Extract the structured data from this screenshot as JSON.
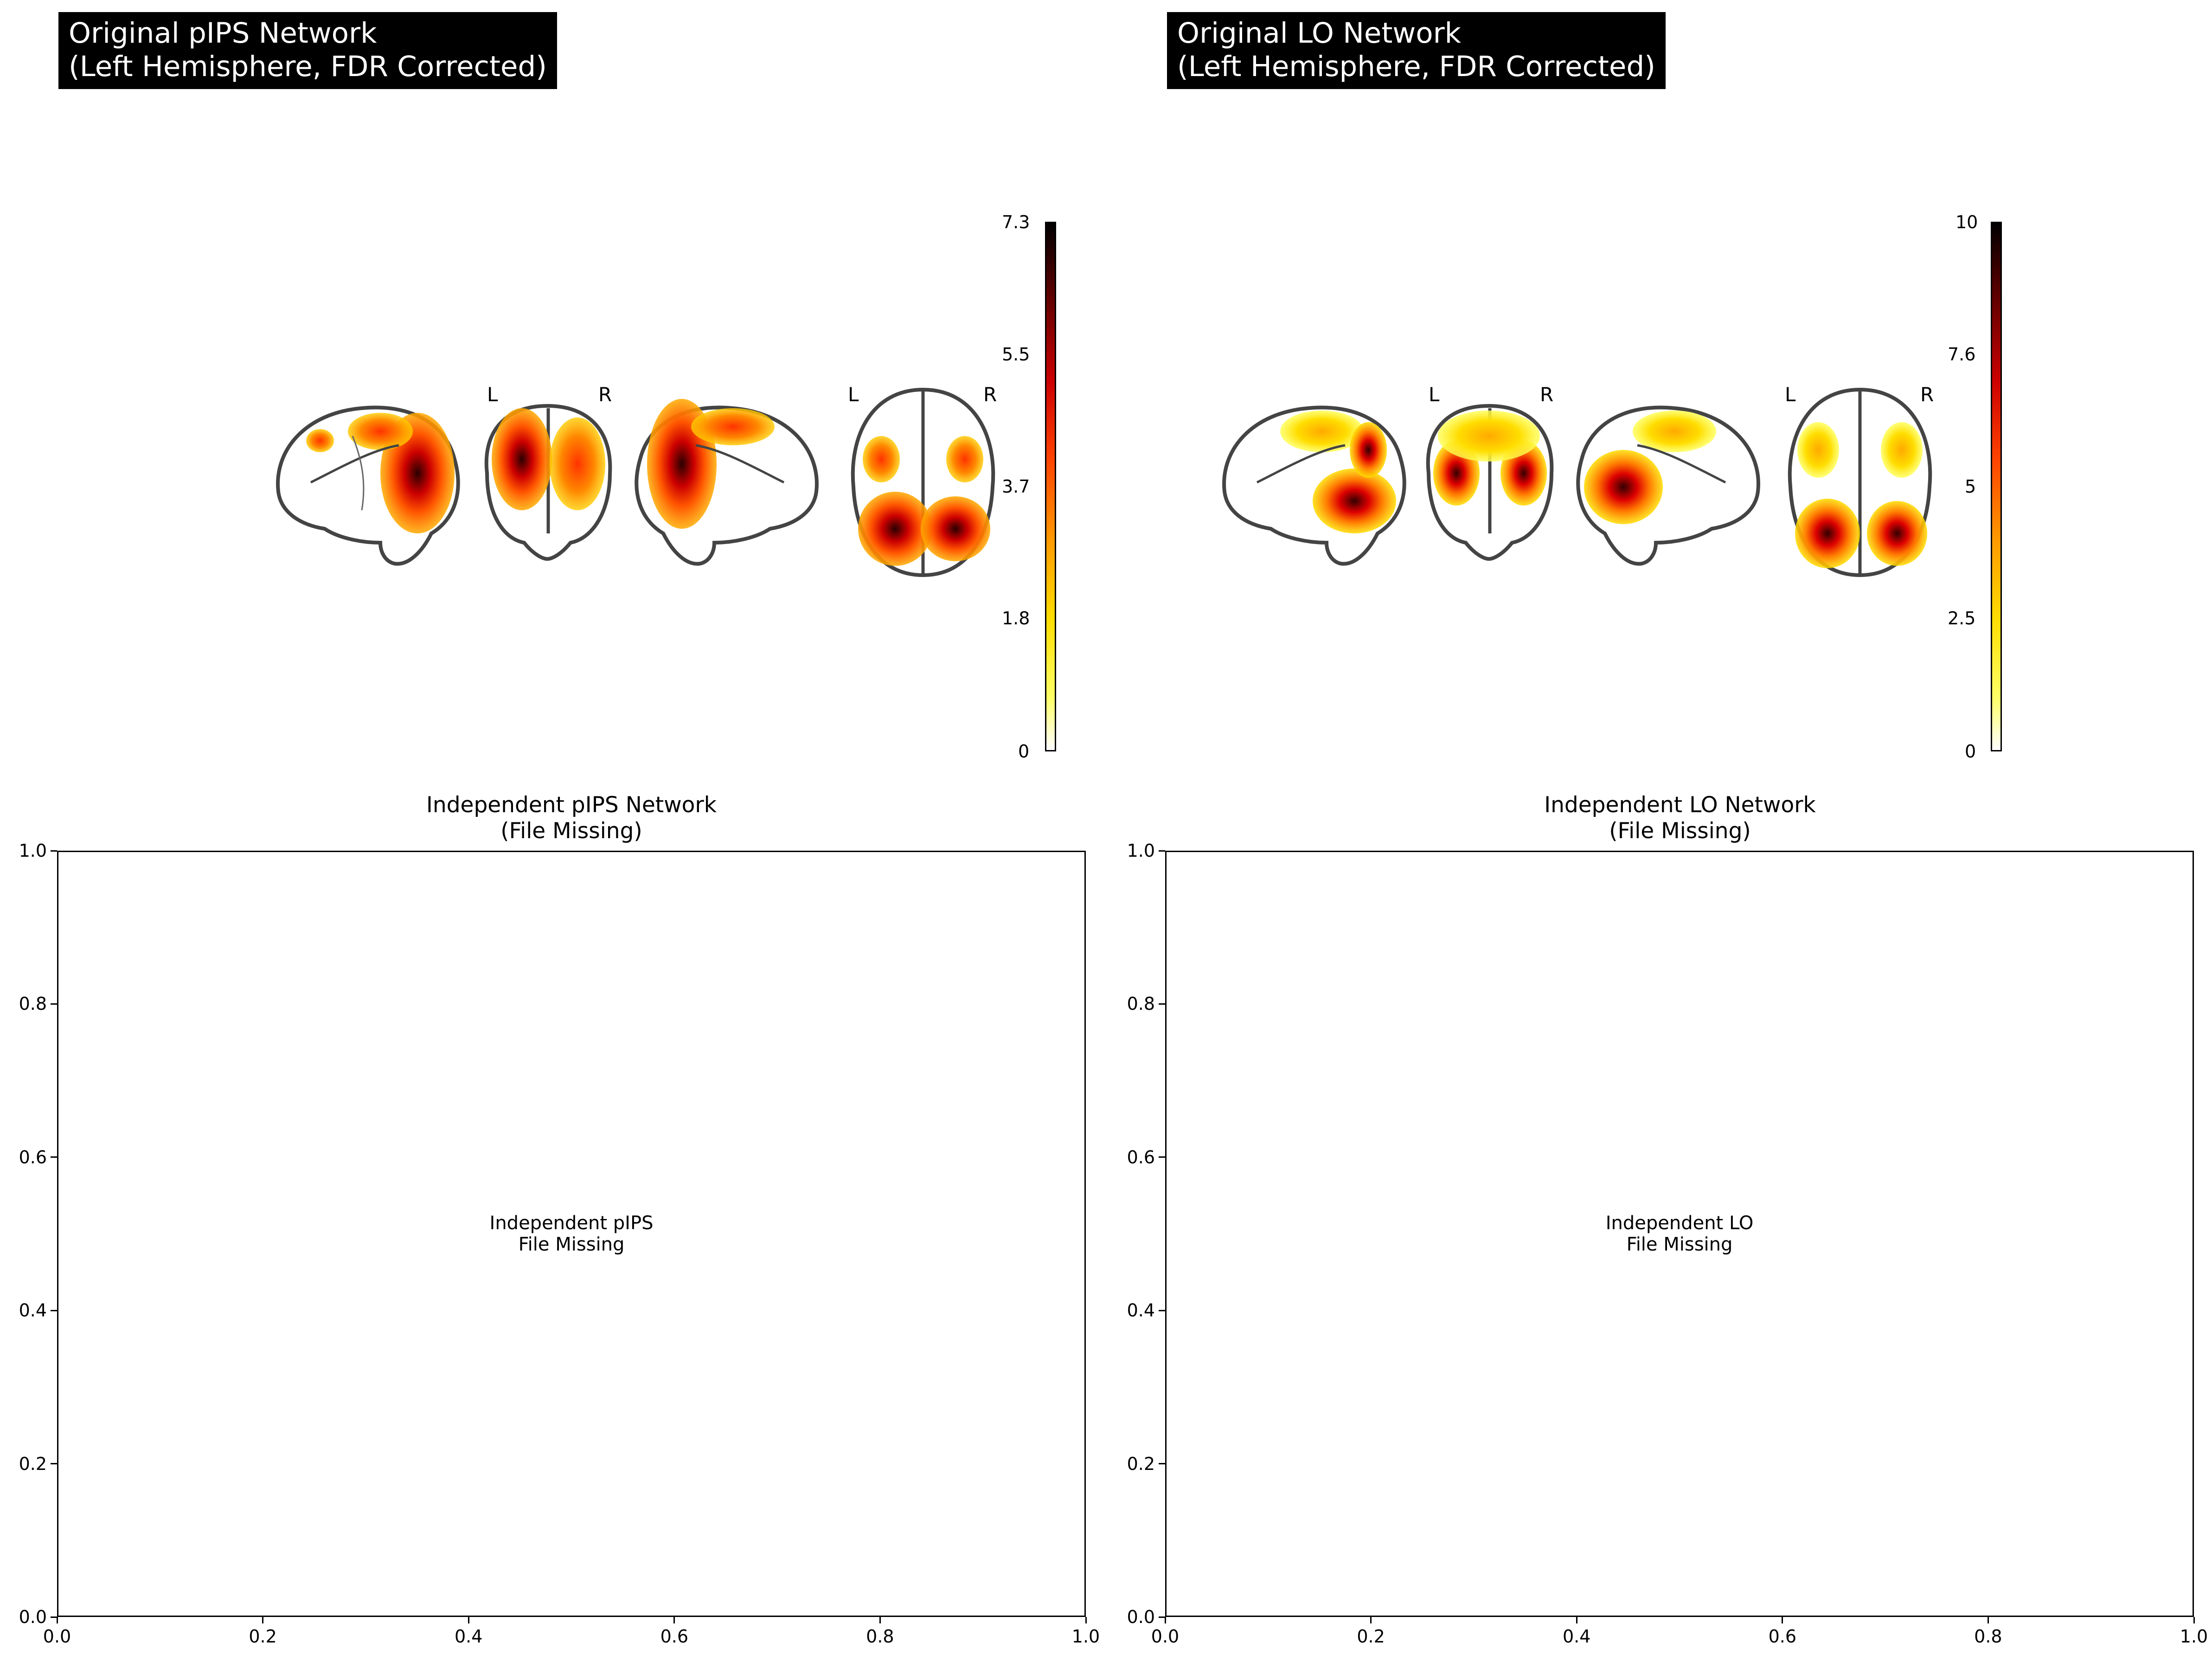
{
  "colors": {
    "title_bg": "#000000",
    "title_fg": "#ffffff",
    "cmap": [
      "#ffffff",
      "#ffff33",
      "#ffcc00",
      "#ff8800",
      "#ff2200",
      "#cc0000",
      "#660000",
      "#000000"
    ]
  },
  "panels": [
    {
      "title": "Original pIPS Network\n(Left Hemisphere, FDR Corrected)",
      "colorbar": {
        "ticks": [
          "7.3",
          "5.5",
          "3.7",
          "1.8",
          "0"
        ],
        "values": [
          7.3,
          5.5,
          3.7,
          1.8,
          0
        ],
        "max": 7.3
      },
      "orientation_labels": [
        "L",
        "R",
        "L",
        "R"
      ]
    },
    {
      "title": "Original LO Network\n(Left Hemisphere, FDR Corrected)",
      "colorbar": {
        "ticks": [
          "10",
          "7.6",
          "5",
          "2.5",
          "0"
        ],
        "values": [
          10,
          7.6,
          5,
          2.5,
          0
        ],
        "max": 10
      },
      "orientation_labels": [
        "L",
        "R",
        "L",
        "R"
      ]
    }
  ],
  "chart_data": [
    {
      "type": "other",
      "title": "Independent pIPS Network\n(File Missing)",
      "annotation": "Independent pIPS\nFile Missing",
      "xlim": [
        0.0,
        1.0
      ],
      "ylim": [
        0.0,
        1.0
      ],
      "xticks": [
        "0.0",
        "0.2",
        "0.4",
        "0.6",
        "0.8",
        "1.0"
      ],
      "yticks": [
        "0.0",
        "0.2",
        "0.4",
        "0.6",
        "0.8",
        "1.0"
      ]
    },
    {
      "type": "other",
      "title": "Independent LO Network\n(File Missing)",
      "annotation": "Independent LO\nFile Missing",
      "xlim": [
        0.0,
        1.0
      ],
      "ylim": [
        0.0,
        1.0
      ],
      "xticks": [
        "0.0",
        "0.2",
        "0.4",
        "0.6",
        "0.8",
        "1.0"
      ],
      "yticks": [
        "0.0",
        "0.2",
        "0.4",
        "0.6",
        "0.8",
        "1.0"
      ]
    }
  ]
}
